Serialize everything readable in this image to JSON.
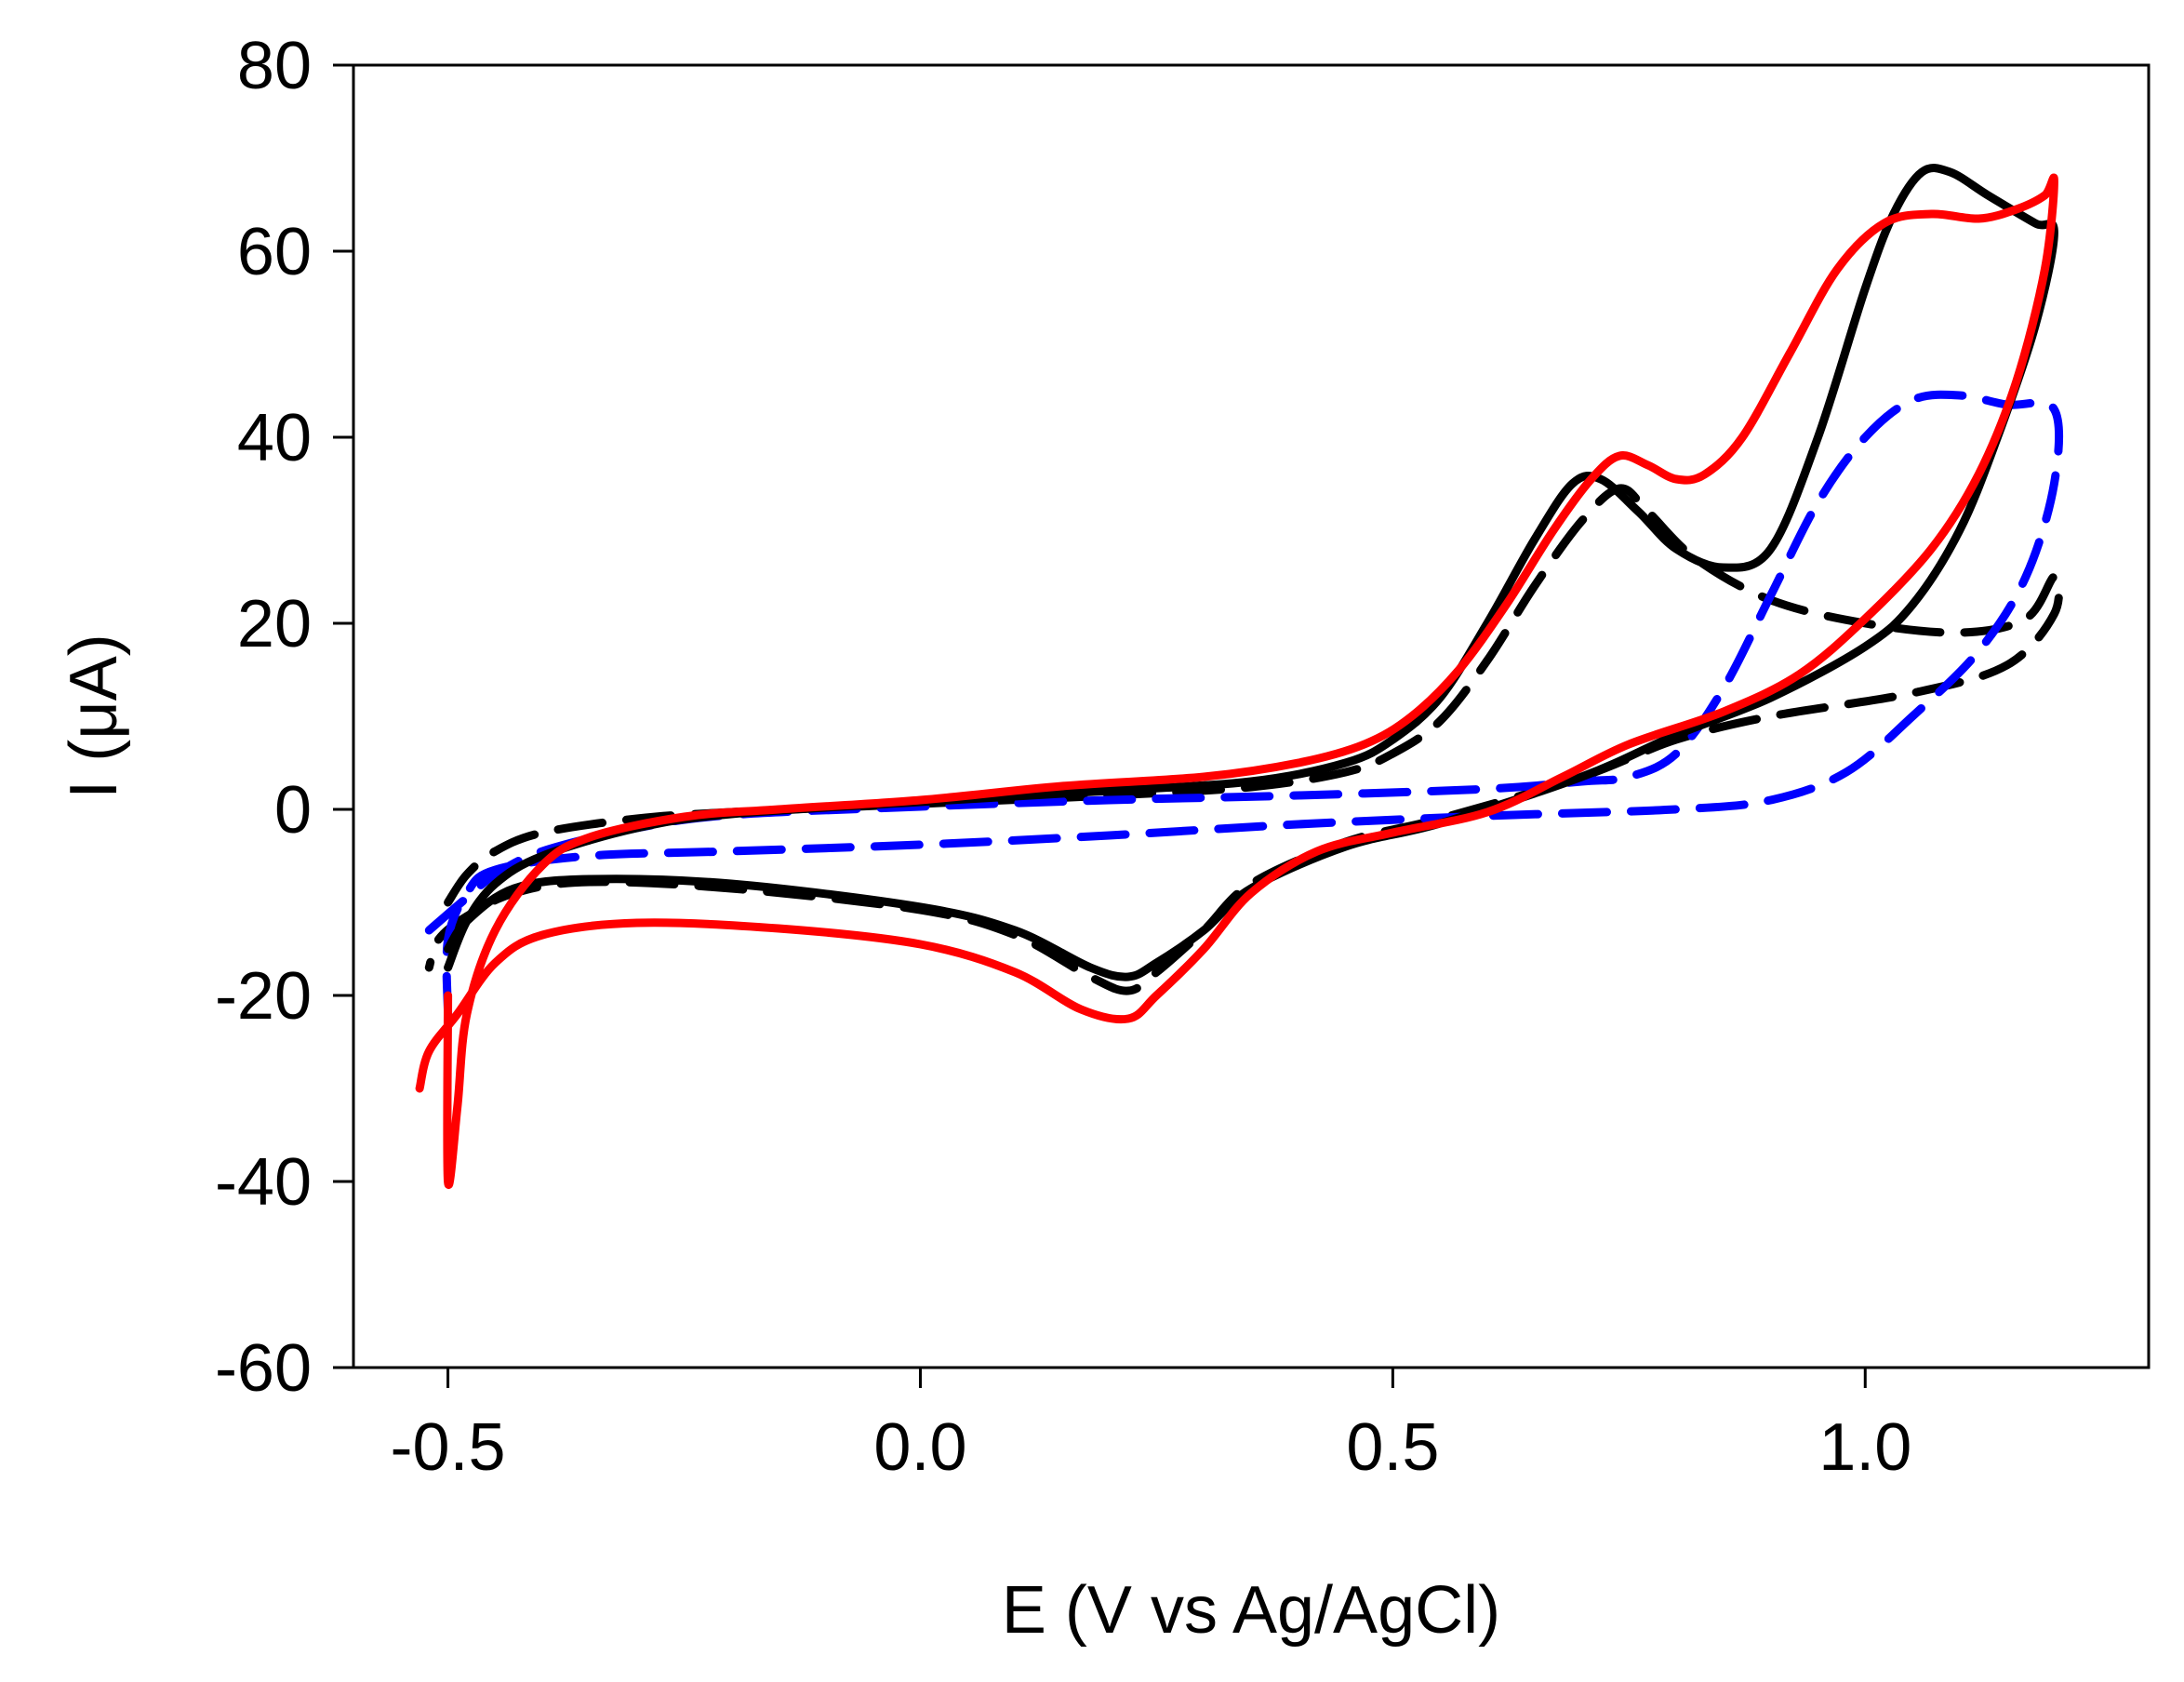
{
  "chart_data": {
    "type": "line",
    "title": "",
    "xlabel": "E (V vs Ag/AgCl)",
    "ylabel": "I (μA)",
    "xlim": [
      -0.6,
      1.3
    ],
    "ylim": [
      -60,
      80
    ],
    "x_ticks": [
      -0.5,
      0.0,
      0.5,
      1.0
    ],
    "x_tick_labels": [
      "-0.5",
      "0.0",
      "0.5",
      "1.0"
    ],
    "y_ticks": [
      -60,
      -40,
      -20,
      0,
      20,
      40,
      60,
      80
    ],
    "y_tick_labels": [
      "-60",
      "-40",
      "-20",
      "0",
      "20",
      "40",
      "60",
      "80"
    ],
    "grid": false,
    "legend": "none",
    "series": [
      {
        "name": "black-dashed",
        "color": "#000000",
        "dash": "long-dash",
        "points": [
          [
            -0.5,
            -10.0
          ],
          [
            -0.48,
            -7.0
          ],
          [
            -0.45,
            -4.5
          ],
          [
            -0.4,
            -2.5
          ],
          [
            -0.3,
            -1.0
          ],
          [
            -0.2,
            -0.3
          ],
          [
            0.0,
            0.6
          ],
          [
            0.2,
            1.5
          ],
          [
            0.35,
            2.4
          ],
          [
            0.45,
            4.0
          ],
          [
            0.5,
            6.0
          ],
          [
            0.55,
            9.5
          ],
          [
            0.6,
            16.0
          ],
          [
            0.65,
            24.0
          ],
          [
            0.7,
            31.0
          ],
          [
            0.74,
            34.5
          ],
          [
            0.77,
            32.0
          ],
          [
            0.82,
            27.0
          ],
          [
            0.9,
            22.5
          ],
          [
            1.0,
            20.0
          ],
          [
            1.1,
            19.0
          ],
          [
            1.17,
            20.5
          ],
          [
            1.2,
            25.0
          ],
          [
            1.2,
            21.0
          ],
          [
            1.15,
            15.5
          ],
          [
            1.05,
            12.5
          ],
          [
            0.9,
            10.0
          ],
          [
            0.8,
            7.5
          ],
          [
            0.7,
            3.5
          ],
          [
            0.55,
            -1.0
          ],
          [
            0.45,
            -3.5
          ],
          [
            0.35,
            -8.0
          ],
          [
            0.3,
            -13.0
          ],
          [
            0.25,
            -17.5
          ],
          [
            0.22,
            -19.5
          ],
          [
            0.18,
            -18.0
          ],
          [
            0.1,
            -13.5
          ],
          [
            0.0,
            -10.8
          ],
          [
            -0.2,
            -8.5
          ],
          [
            -0.35,
            -7.8
          ],
          [
            -0.43,
            -9.0
          ],
          [
            -0.48,
            -11.5
          ],
          [
            -0.51,
            -14.0
          ],
          [
            -0.52,
            -17.0
          ]
        ]
      },
      {
        "name": "blue-dashed",
        "color": "#0000ff",
        "dash": "long-dash",
        "points": [
          [
            -0.52,
            -13.0
          ],
          [
            -0.48,
            -9.5
          ],
          [
            -0.45,
            -7.0
          ],
          [
            -0.4,
            -4.5
          ],
          [
            -0.3,
            -2.0
          ],
          [
            -0.2,
            -0.6
          ],
          [
            0.0,
            0.3
          ],
          [
            0.2,
            1.0
          ],
          [
            0.4,
            1.5
          ],
          [
            0.6,
            2.2
          ],
          [
            0.7,
            3.0
          ],
          [
            0.75,
            3.5
          ],
          [
            0.8,
            6.0
          ],
          [
            0.85,
            13.0
          ],
          [
            0.9,
            23.0
          ],
          [
            0.95,
            33.0
          ],
          [
            1.0,
            40.0
          ],
          [
            1.05,
            44.0
          ],
          [
            1.1,
            44.5
          ],
          [
            1.15,
            43.5
          ],
          [
            1.2,
            43.0
          ],
          [
            1.2,
            35.0
          ],
          [
            1.17,
            25.0
          ],
          [
            1.12,
            17.0
          ],
          [
            1.05,
            10.0
          ],
          [
            0.98,
            4.0
          ],
          [
            0.9,
            1.0
          ],
          [
            0.8,
            0.0
          ],
          [
            0.6,
            -0.7
          ],
          [
            0.4,
            -1.6
          ],
          [
            0.2,
            -2.8
          ],
          [
            0.0,
            -3.8
          ],
          [
            -0.2,
            -4.5
          ],
          [
            -0.35,
            -5.0
          ],
          [
            -0.45,
            -6.5
          ],
          [
            -0.48,
            -9.0
          ],
          [
            -0.5,
            -14.0
          ],
          [
            -0.5,
            -22.0
          ]
        ]
      },
      {
        "name": "black-solid",
        "color": "#000000",
        "dash": "solid",
        "points": [
          [
            -0.5,
            -17.0
          ],
          [
            -0.48,
            -12.0
          ],
          [
            -0.45,
            -8.0
          ],
          [
            -0.4,
            -5.0
          ],
          [
            -0.3,
            -2.0
          ],
          [
            -0.2,
            -0.5
          ],
          [
            0.0,
            0.8
          ],
          [
            0.2,
            2.0
          ],
          [
            0.35,
            3.0
          ],
          [
            0.45,
            5.0
          ],
          [
            0.5,
            7.5
          ],
          [
            0.55,
            12.0
          ],
          [
            0.6,
            20.0
          ],
          [
            0.65,
            29.0
          ],
          [
            0.69,
            35.0
          ],
          [
            0.72,
            35.5
          ],
          [
            0.76,
            32.0
          ],
          [
            0.8,
            28.0
          ],
          [
            0.85,
            26.0
          ],
          [
            0.9,
            28.0
          ],
          [
            0.95,
            40.0
          ],
          [
            1.0,
            56.0
          ],
          [
            1.03,
            64.0
          ],
          [
            1.06,
            68.5
          ],
          [
            1.09,
            68.5
          ],
          [
            1.13,
            66.0
          ],
          [
            1.18,
            63.0
          ],
          [
            1.2,
            62.0
          ],
          [
            1.18,
            52.0
          ],
          [
            1.14,
            40.0
          ],
          [
            1.1,
            30.0
          ],
          [
            1.05,
            22.0
          ],
          [
            1.0,
            17.5
          ],
          [
            0.9,
            12.0
          ],
          [
            0.8,
            8.0
          ],
          [
            0.7,
            3.5
          ],
          [
            0.55,
            -1.5
          ],
          [
            0.45,
            -4.0
          ],
          [
            0.35,
            -8.5
          ],
          [
            0.3,
            -13.0
          ],
          [
            0.25,
            -16.5
          ],
          [
            0.22,
            -18.0
          ],
          [
            0.18,
            -17.0
          ],
          [
            0.1,
            -13.0
          ],
          [
            0.0,
            -10.5
          ],
          [
            -0.2,
            -8.0
          ],
          [
            -0.35,
            -7.5
          ],
          [
            -0.43,
            -8.5
          ],
          [
            -0.48,
            -12.0
          ],
          [
            -0.5,
            -15.0
          ]
        ]
      },
      {
        "name": "red-solid",
        "color": "#ff0000",
        "dash": "solid",
        "points": [
          [
            -0.5,
            -20.0
          ],
          [
            -0.5,
            -40.0
          ],
          [
            -0.49,
            -32.0
          ],
          [
            -0.48,
            -22.0
          ],
          [
            -0.45,
            -13.0
          ],
          [
            -0.4,
            -6.0
          ],
          [
            -0.35,
            -3.0
          ],
          [
            -0.25,
            -0.8
          ],
          [
            -0.15,
            0.0
          ],
          [
            0.0,
            1.0
          ],
          [
            0.15,
            2.5
          ],
          [
            0.3,
            3.5
          ],
          [
            0.4,
            5.0
          ],
          [
            0.47,
            7.0
          ],
          [
            0.52,
            10.0
          ],
          [
            0.57,
            15.0
          ],
          [
            0.62,
            22.0
          ],
          [
            0.67,
            30.0
          ],
          [
            0.71,
            35.5
          ],
          [
            0.74,
            38.0
          ],
          [
            0.77,
            37.0
          ],
          [
            0.8,
            35.5
          ],
          [
            0.83,
            36.0
          ],
          [
            0.87,
            40.0
          ],
          [
            0.92,
            49.0
          ],
          [
            0.97,
            58.0
          ],
          [
            1.02,
            63.0
          ],
          [
            1.07,
            64.0
          ],
          [
            1.12,
            63.5
          ],
          [
            1.16,
            64.5
          ],
          [
            1.19,
            66.0
          ],
          [
            1.2,
            67.5
          ],
          [
            1.19,
            58.0
          ],
          [
            1.16,
            46.0
          ],
          [
            1.12,
            36.0
          ],
          [
            1.07,
            28.0
          ],
          [
            1.0,
            20.5
          ],
          [
            0.93,
            14.5
          ],
          [
            0.85,
            10.5
          ],
          [
            0.75,
            7.0
          ],
          [
            0.68,
            3.5
          ],
          [
            0.6,
            -0.3
          ],
          [
            0.5,
            -2.5
          ],
          [
            0.42,
            -4.5
          ],
          [
            0.35,
            -9.0
          ],
          [
            0.3,
            -15.0
          ],
          [
            0.25,
            -20.0
          ],
          [
            0.22,
            -22.5
          ],
          [
            0.17,
            -21.5
          ],
          [
            0.1,
            -17.5
          ],
          [
            0.0,
            -14.5
          ],
          [
            -0.15,
            -12.8
          ],
          [
            -0.3,
            -12.2
          ],
          [
            -0.4,
            -13.5
          ],
          [
            -0.45,
            -16.5
          ],
          [
            -0.49,
            -22.0
          ],
          [
            -0.52,
            -26.0
          ],
          [
            -0.53,
            -30.0
          ]
        ]
      }
    ]
  }
}
